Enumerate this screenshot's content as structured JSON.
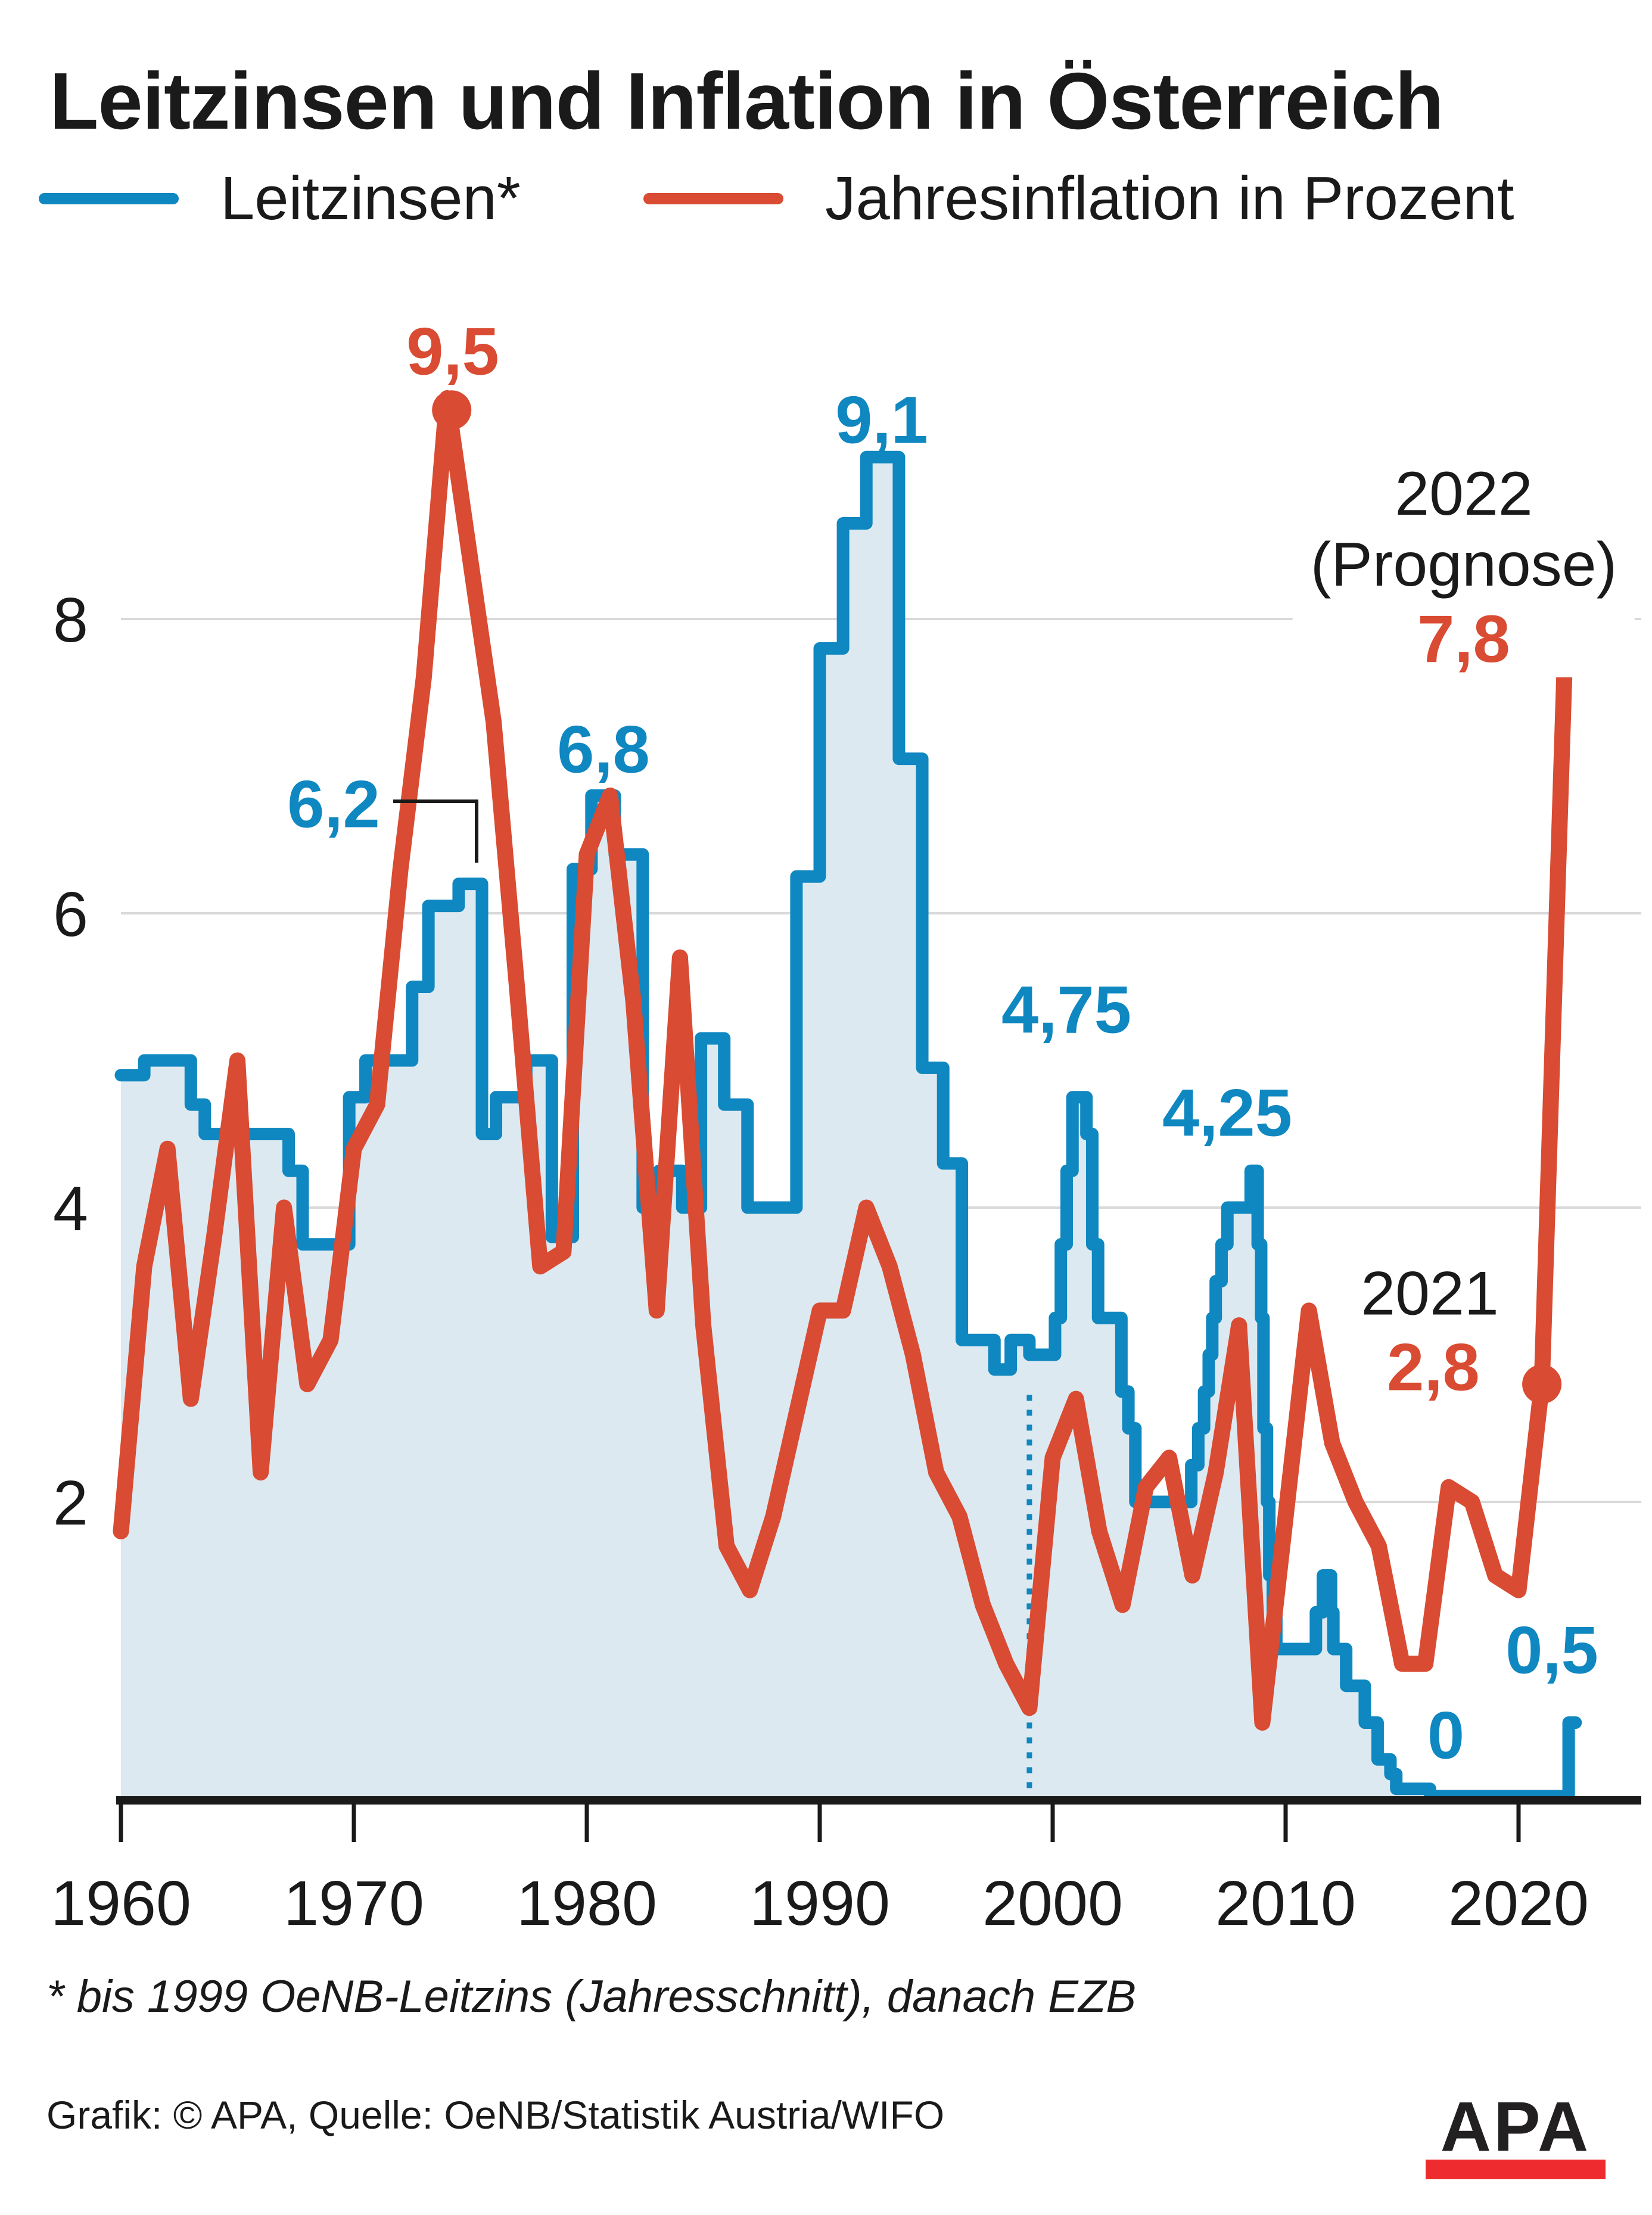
{
  "title": "Leitzinsen und Inflation in Österreich",
  "legend": {
    "series1_label": "Leitzinsen*",
    "series2_label": "Jahresinflation in Prozent"
  },
  "colors": {
    "blue": "#0f87c0",
    "light_blue_fill": "#dde9f1",
    "red": "#d94b32",
    "grid": "#d9d9d9",
    "axis": "#1a1a1a",
    "apa_bar_red": "#ee2b2e"
  },
  "annotations": {
    "inflation_peak_1974": "9,5",
    "rate_peak_1992": "9,1",
    "rate_1975": "6,2",
    "rate_1981": "6,8",
    "rate_2000": "4,75",
    "rate_2008": "4,25",
    "year_2022": "2022",
    "prognose": "(Prognose)",
    "inflation_2022": "7,8",
    "year_2021": "2021",
    "inflation_2021": "2,8",
    "rate_2022": "0,5",
    "rate_zero": "0"
  },
  "footnote": "* bis 1999 OeNB-Leitzins (Jahresschnitt), danach EZB",
  "credit": "Grafik: © APA, Quelle: OeNB/Statistik Austria/WIFO",
  "logo": {
    "text": "APA"
  },
  "chart_data": {
    "type": "line",
    "title": "Leitzinsen und Inflation in Österreich",
    "xlabel": "",
    "ylabel": "",
    "x_range": [
      1960,
      2022.45
    ],
    "ylim": [
      0,
      9.6
    ],
    "grid": true,
    "y_gridlines": [
      2,
      4,
      6,
      8
    ],
    "x_ticks": [
      1960,
      1970,
      1980,
      1990,
      2000,
      2010,
      2020
    ],
    "divider": {
      "year": 1999,
      "top_value": 2.95,
      "note": "dotted line: switch from OeNB to EZB rate"
    },
    "series": [
      {
        "name": "Leitzinsen*",
        "type": "step-area",
        "color": "#0f87c0",
        "fill": "#dde9f1",
        "end_year": 2022.45,
        "breakpoints": [
          [
            1960,
            4.9
          ],
          [
            1961,
            5.0
          ],
          [
            1963,
            4.7
          ],
          [
            1963.6,
            4.5
          ],
          [
            1967.2,
            4.25
          ],
          [
            1967.8,
            3.75
          ],
          [
            1969.8,
            4.75
          ],
          [
            1970.5,
            5.0
          ],
          [
            1972.5,
            5.5
          ],
          [
            1973.2,
            6.05
          ],
          [
            1974.5,
            6.2
          ],
          [
            1975.5,
            4.5
          ],
          [
            1976.1,
            4.75
          ],
          [
            1977.4,
            5.0
          ],
          [
            1978.5,
            3.8
          ],
          [
            1979.4,
            6.3
          ],
          [
            1980.2,
            6.8
          ],
          [
            1981.2,
            6.4
          ],
          [
            1982.4,
            4.0
          ],
          [
            1983.1,
            4.25
          ],
          [
            1984.1,
            4.0
          ],
          [
            1984.9,
            5.15
          ],
          [
            1985.9,
            4.7
          ],
          [
            1986.9,
            4.0
          ],
          [
            1989,
            6.25
          ],
          [
            1990,
            7.8
          ],
          [
            1991,
            8.65
          ],
          [
            1992,
            9.1
          ],
          [
            1993.4,
            7.05
          ],
          [
            1994.4,
            4.95
          ],
          [
            1995.3,
            4.3
          ],
          [
            1996.1,
            3.1
          ],
          [
            1997.5,
            2.9
          ],
          [
            1998.2,
            3.1
          ],
          [
            1999,
            3.0
          ],
          [
            2000.1,
            3.25
          ],
          [
            2000.35,
            3.75
          ],
          [
            2000.6,
            4.25
          ],
          [
            2000.85,
            4.75
          ],
          [
            2001.45,
            4.5
          ],
          [
            2001.7,
            3.75
          ],
          [
            2001.95,
            3.25
          ],
          [
            2002.95,
            2.75
          ],
          [
            2003.25,
            2.5
          ],
          [
            2003.55,
            2.0
          ],
          [
            2005.95,
            2.25
          ],
          [
            2006.25,
            2.5
          ],
          [
            2006.5,
            2.75
          ],
          [
            2006.7,
            3.0
          ],
          [
            2006.85,
            3.25
          ],
          [
            2007.0,
            3.5
          ],
          [
            2007.25,
            3.75
          ],
          [
            2007.5,
            4.0
          ],
          [
            2008.5,
            4.25
          ],
          [
            2008.8,
            3.75
          ],
          [
            2008.95,
            3.25
          ],
          [
            2009.05,
            2.5
          ],
          [
            2009.2,
            2.0
          ],
          [
            2009.3,
            1.5
          ],
          [
            2009.45,
            1.25
          ],
          [
            2009.6,
            1.0
          ],
          [
            2011.3,
            1.25
          ],
          [
            2011.6,
            1.5
          ],
          [
            2011.95,
            1.25
          ],
          [
            2012.05,
            1.0
          ],
          [
            2012.6,
            0.75
          ],
          [
            2013.4,
            0.5
          ],
          [
            2013.95,
            0.25
          ],
          [
            2014.5,
            0.15
          ],
          [
            2014.75,
            0.05
          ],
          [
            2016.2,
            0.0
          ],
          [
            2022.15,
            0.5
          ]
        ]
      },
      {
        "name": "Jahresinflation in Prozent",
        "type": "line",
        "color": "#d94b32",
        "points": [
          [
            1960,
            1.8
          ],
          [
            1961,
            3.6
          ],
          [
            1962,
            4.4
          ],
          [
            1963,
            2.7
          ],
          [
            1964,
            3.8
          ],
          [
            1965,
            5.0
          ],
          [
            1966,
            2.2
          ],
          [
            1967,
            4.0
          ],
          [
            1968,
            2.8
          ],
          [
            1969,
            3.1
          ],
          [
            1970,
            4.4
          ],
          [
            1971,
            4.7
          ],
          [
            1972,
            6.3
          ],
          [
            1973,
            7.6
          ],
          [
            1974,
            9.5
          ],
          [
            1975,
            8.4
          ],
          [
            1976,
            7.3
          ],
          [
            1977,
            5.5
          ],
          [
            1978,
            3.6
          ],
          [
            1979,
            3.7
          ],
          [
            1980,
            6.4
          ],
          [
            1981,
            6.8
          ],
          [
            1982,
            5.4
          ],
          [
            1983,
            3.3
          ],
          [
            1984,
            5.7
          ],
          [
            1985,
            3.2
          ],
          [
            1986,
            1.7
          ],
          [
            1987,
            1.4
          ],
          [
            1988,
            1.9
          ],
          [
            1989,
            2.6
          ],
          [
            1990,
            3.3
          ],
          [
            1991,
            3.3
          ],
          [
            1992,
            4.0
          ],
          [
            1993,
            3.6
          ],
          [
            1994,
            3.0
          ],
          [
            1995,
            2.2
          ],
          [
            1996,
            1.9
          ],
          [
            1997,
            1.3
          ],
          [
            1998,
            0.9
          ],
          [
            1999,
            0.6
          ],
          [
            2000,
            2.3
          ],
          [
            2001,
            2.7
          ],
          [
            2002,
            1.8
          ],
          [
            2003,
            1.3
          ],
          [
            2004,
            2.1
          ],
          [
            2005,
            2.3
          ],
          [
            2006,
            1.5
          ],
          [
            2007,
            2.2
          ],
          [
            2008,
            3.2
          ],
          [
            2009,
            0.5
          ],
          [
            2010,
            1.9
          ],
          [
            2011,
            3.3
          ],
          [
            2012,
            2.4
          ],
          [
            2013,
            2.0
          ],
          [
            2014,
            1.7
          ],
          [
            2015,
            0.9
          ],
          [
            2016,
            0.9
          ],
          [
            2017,
            2.1
          ],
          [
            2018,
            2.0
          ],
          [
            2019,
            1.5
          ],
          [
            2020,
            1.4
          ],
          [
            2021,
            2.8
          ],
          [
            2022,
            7.8
          ]
        ]
      }
    ],
    "markers": [
      {
        "series": "Jahresinflation in Prozent",
        "year": 1974.2,
        "value": 9.42,
        "label": "9,5"
      },
      {
        "series": "Jahresinflation in Prozent",
        "year": 2021,
        "value": 2.8,
        "label": "2,8"
      },
      {
        "series": "Jahresinflation in Prozent",
        "year": 2022,
        "value": 7.8,
        "label": "7,8"
      }
    ],
    "legend_position": "top"
  }
}
